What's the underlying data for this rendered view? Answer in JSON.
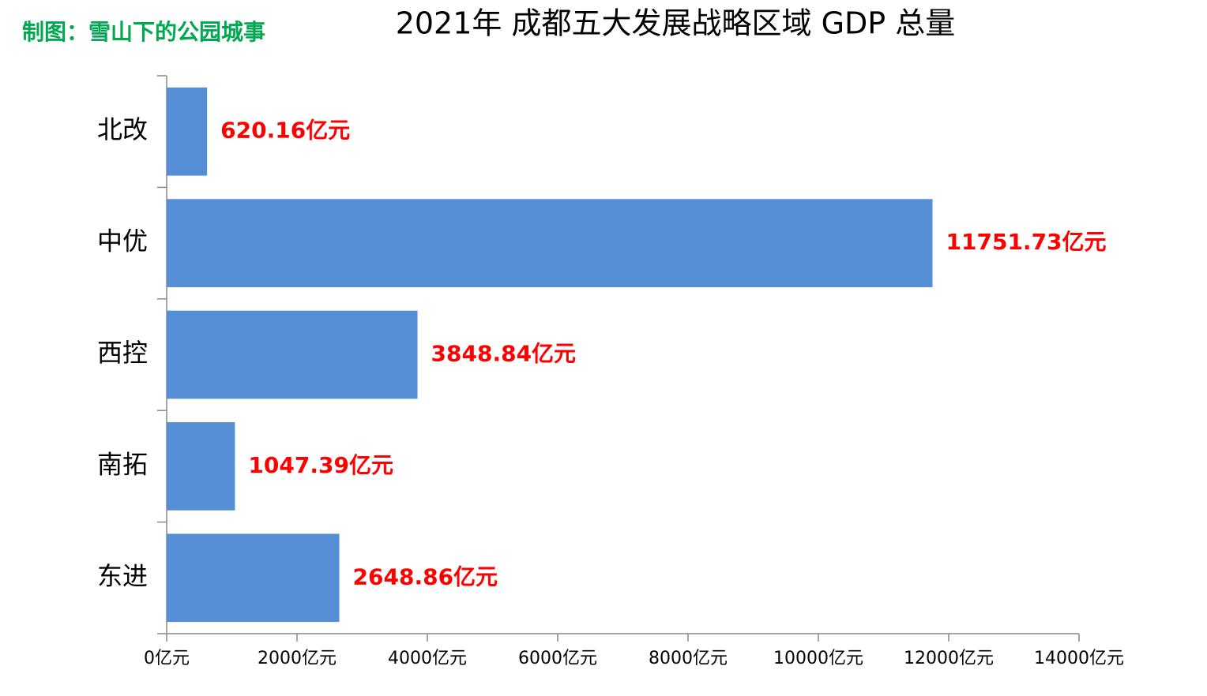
{
  "chart_data": {
    "type": "hbar",
    "title": "2021年 成都五大发展战略区域 GDP 总量",
    "credit": "制图：雪山下的公园城事",
    "categories": [
      "北改",
      "中优",
      "西控",
      "南拓",
      "东进"
    ],
    "values": [
      620.16,
      11751.73,
      3848.84,
      1047.39,
      2648.86
    ],
    "value_labels": [
      "620.16亿元",
      "11751.73亿元",
      "3848.84亿元",
      "1047.39亿元",
      "2648.86亿元"
    ],
    "color": "#558ed5",
    "label_color": "#ff0000",
    "credit_color": "#00a94f",
    "xlim": [
      0,
      14000
    ],
    "xticks": [
      {
        "value": 0,
        "label": "0亿元"
      },
      {
        "value": 2000,
        "label": "2000亿元"
      },
      {
        "value": 4000,
        "label": "4000亿元"
      },
      {
        "value": 6000,
        "label": "6000亿元"
      },
      {
        "value": 8000,
        "label": "8000亿元"
      },
      {
        "value": 10000,
        "label": "10000亿元"
      },
      {
        "value": 12000,
        "label": "12000亿元"
      },
      {
        "value": 14000,
        "label": "14000亿元"
      }
    ],
    "grid": false
  }
}
